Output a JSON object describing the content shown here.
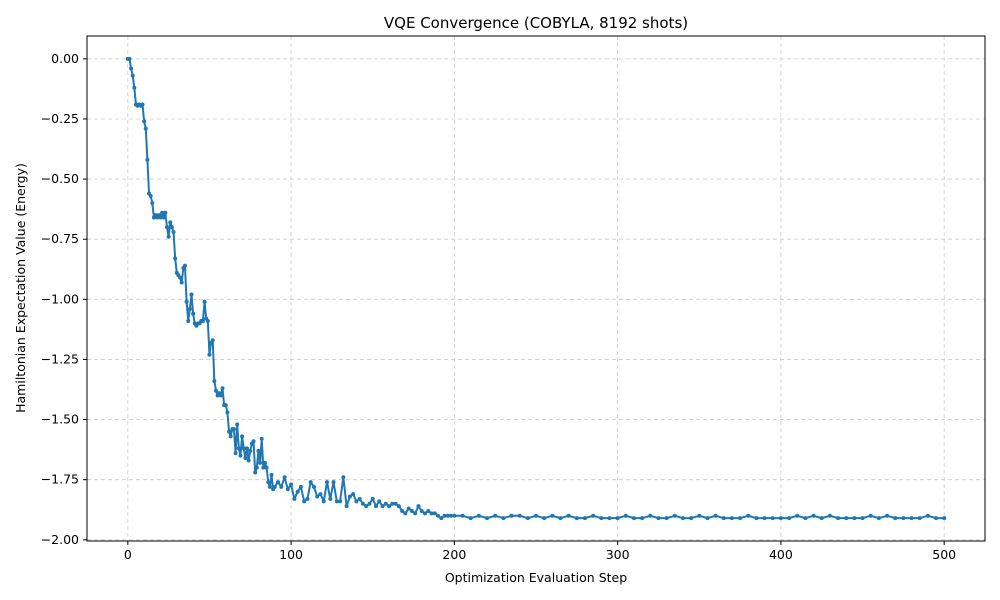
{
  "chart_data": {
    "type": "line",
    "title": "VQE Convergence (COBYLA, 8192 shots)",
    "x_label": "Optimization Evaluation Step",
    "y_label": "Hamiltonian Expectation Value (Energy)",
    "grid": true,
    "color": "#1f77b4",
    "xlim": [
      -25,
      525
    ],
    "ylim": [
      -2.005,
      0.095
    ],
    "xticks": [
      0,
      100,
      200,
      300,
      400,
      500
    ],
    "yticks": [
      {
        "value": 0,
        "label": "0.00"
      },
      {
        "value": -0.25,
        "label": "−0.25"
      },
      {
        "value": -0.5,
        "label": "−0.50"
      },
      {
        "value": -0.75,
        "label": "−0.75"
      },
      {
        "value": -1.0,
        "label": "−1.00"
      },
      {
        "value": -1.25,
        "label": "−1.25"
      },
      {
        "value": -1.5,
        "label": "−1.50"
      },
      {
        "value": -1.75,
        "label": "−1.75"
      },
      {
        "value": -2.0,
        "label": "−2.00"
      }
    ],
    "x": [
      0,
      1,
      2,
      3,
      4,
      5,
      6,
      7,
      8,
      9,
      10,
      11,
      12,
      13,
      14,
      15,
      16,
      17,
      18,
      19,
      20,
      21,
      22,
      23,
      24,
      25,
      26,
      27,
      28,
      29,
      30,
      31,
      32,
      33,
      34,
      35,
      36,
      37,
      38,
      39,
      40,
      41,
      42,
      43,
      44,
      45,
      46,
      47,
      48,
      49,
      50,
      51,
      52,
      53,
      54,
      55,
      56,
      57,
      58,
      59,
      60,
      61,
      62,
      63,
      64,
      65,
      66,
      67,
      68,
      69,
      70,
      71,
      72,
      73,
      74,
      75,
      76,
      77,
      78,
      79,
      80,
      81,
      82,
      83,
      84,
      85,
      86,
      87,
      88,
      89,
      90,
      92,
      94,
      96,
      98,
      100,
      102,
      104,
      106,
      108,
      110,
      112,
      114,
      116,
      118,
      120,
      122,
      124,
      126,
      128,
      130,
      132,
      134,
      136,
      138,
      140,
      142,
      144,
      146,
      148,
      150,
      152,
      154,
      156,
      158,
      160,
      162,
      164,
      166,
      168,
      170,
      172,
      174,
      176,
      178,
      180,
      182,
      184,
      186,
      188,
      190,
      192,
      194,
      196,
      198,
      200,
      205,
      210,
      215,
      220,
      225,
      230,
      235,
      240,
      245,
      250,
      255,
      260,
      265,
      270,
      275,
      280,
      285,
      290,
      295,
      300,
      305,
      310,
      315,
      320,
      325,
      330,
      335,
      340,
      345,
      350,
      355,
      360,
      365,
      370,
      375,
      380,
      385,
      390,
      395,
      400,
      405,
      410,
      415,
      420,
      425,
      430,
      435,
      440,
      445,
      450,
      455,
      460,
      465,
      470,
      475,
      480,
      485,
      490,
      495,
      500
    ],
    "values": [
      0,
      0,
      -0.04,
      -0.07,
      -0.12,
      -0.19,
      -0.195,
      -0.19,
      -0.195,
      -0.19,
      -0.26,
      -0.29,
      -0.42,
      -0.56,
      -0.57,
      -0.6,
      -0.66,
      -0.65,
      -0.66,
      -0.65,
      -0.66,
      -0.64,
      -0.66,
      -0.64,
      -0.7,
      -0.74,
      -0.68,
      -0.7,
      -0.72,
      -0.83,
      -0.89,
      -0.9,
      -0.91,
      -0.93,
      -0.87,
      -0.86,
      -1.01,
      -1.09,
      -1.04,
      -0.98,
      -1.06,
      -1.1,
      -1.11,
      -1.1,
      -1.1,
      -1.09,
      -1.09,
      -1.01,
      -1.08,
      -1.09,
      -1.23,
      -1.18,
      -1.17,
      -1.34,
      -1.38,
      -1.4,
      -1.39,
      -1.4,
      -1.37,
      -1.44,
      -1.44,
      -1.47,
      -1.55,
      -1.57,
      -1.54,
      -1.54,
      -1.64,
      -1.52,
      -1.62,
      -1.65,
      -1.57,
      -1.62,
      -1.66,
      -1.62,
      -1.67,
      -1.63,
      -1.6,
      -1.59,
      -1.72,
      -1.7,
      -1.63,
      -1.68,
      -1.58,
      -1.7,
      -1.68,
      -1.7,
      -1.76,
      -1.78,
      -1.73,
      -1.79,
      -1.78,
      -1.76,
      -1.78,
      -1.74,
      -1.79,
      -1.77,
      -1.83,
      -1.8,
      -1.78,
      -1.84,
      -1.83,
      -1.76,
      -1.78,
      -1.82,
      -1.81,
      -1.84,
      -1.76,
      -1.83,
      -1.76,
      -1.84,
      -1.84,
      -1.74,
      -1.86,
      -1.82,
      -1.81,
      -1.84,
      -1.83,
      -1.85,
      -1.86,
      -1.85,
      -1.83,
      -1.86,
      -1.84,
      -1.86,
      -1.85,
      -1.86,
      -1.85,
      -1.85,
      -1.86,
      -1.88,
      -1.89,
      -1.87,
      -1.88,
      -1.89,
      -1.86,
      -1.88,
      -1.89,
      -1.88,
      -1.89,
      -1.89,
      -1.9,
      -1.91,
      -1.9,
      -1.9,
      -1.9,
      -1.9,
      -1.9,
      -1.91,
      -1.9,
      -1.91,
      -1.9,
      -1.91,
      -1.9,
      -1.9,
      -1.91,
      -1.9,
      -1.91,
      -1.9,
      -1.91,
      -1.9,
      -1.91,
      -1.91,
      -1.9,
      -1.91,
      -1.91,
      -1.91,
      -1.9,
      -1.91,
      -1.91,
      -1.9,
      -1.91,
      -1.91,
      -1.9,
      -1.91,
      -1.91,
      -1.9,
      -1.91,
      -1.9,
      -1.91,
      -1.91,
      -1.91,
      -1.9,
      -1.91,
      -1.91,
      -1.91,
      -1.91,
      -1.91,
      -1.9,
      -1.91,
      -1.9,
      -1.91,
      -1.9,
      -1.91,
      -1.91,
      -1.91,
      -1.91,
      -1.9,
      -1.91,
      -1.9,
      -1.91,
      -1.91,
      -1.91,
      -1.91,
      -1.9,
      -1.91,
      -1.91
    ]
  }
}
